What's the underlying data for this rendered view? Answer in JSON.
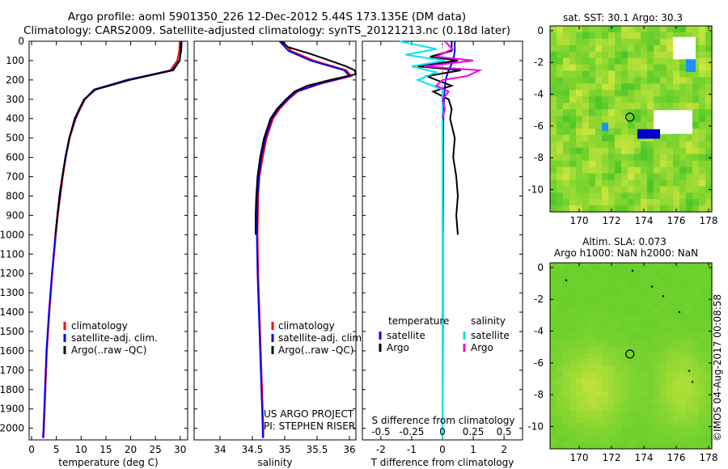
{
  "header": {
    "title_line1": "Argo profile: aoml 5901350_226 12-Dec-2012 5.44S 173.135E (DM data)",
    "title_line2": "Climatology: CARS2009. Satellite-adjusted climatology: synTS_20121213.nc (0.18d later)"
  },
  "footer_stamp": "©IMOS 04-Aug-2017 00:08:58",
  "colors": {
    "climatology": "#ff0000",
    "satellite": "#0000ff",
    "argo": "#000000",
    "salinity_satellite": "#00e5ee",
    "salinity_argo": "#ee00ee",
    "map_base": "#4cd93a"
  },
  "chart_data": [
    {
      "type": "line",
      "xlabel": "temperature (deg C)",
      "ylabel": "",
      "xlim": [
        -0.5,
        31.5
      ],
      "ylim": [
        2060,
        0
      ],
      "xticks": [
        0,
        5,
        10,
        15,
        20,
        25,
        30
      ],
      "yticks": [
        0,
        100,
        200,
        300,
        400,
        500,
        600,
        700,
        800,
        900,
        1000,
        1100,
        1200,
        1300,
        1400,
        1500,
        1600,
        1700,
        1800,
        1900,
        2000
      ],
      "legend": [
        "climatology",
        "satellite-adj. clim.",
        "Argo(..raw -QC)"
      ],
      "legend_position": "bottom-left",
      "series": [
        {
          "name": "climatology",
          "depth": [
            0,
            50,
            100,
            150,
            200,
            250,
            300,
            350,
            400,
            500,
            600,
            700,
            800,
            900,
            1000,
            1200,
            1400,
            1600,
            1800,
            2000,
            2050
          ],
          "values": [
            29.9,
            29.8,
            29.4,
            28.0,
            19.6,
            12.8,
            10.8,
            9.8,
            8.9,
            7.7,
            6.9,
            6.3,
            5.8,
            5.3,
            4.9,
            4.2,
            3.6,
            3.1,
            2.8,
            2.5,
            2.4
          ]
        },
        {
          "name": "satellite-adj. clim.",
          "depth": [
            0,
            50,
            100,
            150,
            200,
            250,
            300,
            350,
            400,
            500,
            600,
            700,
            800,
            900,
            1000,
            1200,
            1400,
            1600,
            1800,
            2000,
            2050
          ],
          "values": [
            30.3,
            30.2,
            29.8,
            28.4,
            19.2,
            12.6,
            10.7,
            9.7,
            8.8,
            7.6,
            6.8,
            6.2,
            5.7,
            5.2,
            4.8,
            4.1,
            3.5,
            3.0,
            2.7,
            2.4,
            2.3
          ]
        },
        {
          "name": "Argo(..raw -QC)",
          "depth": [
            0,
            50,
            100,
            150,
            200,
            250,
            300,
            350,
            400,
            500,
            600,
            700,
            800,
            900,
            1000
          ],
          "values": [
            30.2,
            30.1,
            29.9,
            28.6,
            19.8,
            12.9,
            10.6,
            9.6,
            8.7,
            7.6,
            6.9,
            6.2,
            5.6,
            5.2,
            4.8
          ]
        }
      ]
    },
    {
      "type": "line",
      "xlabel": "salinity",
      "xlim": [
        33.6,
        36.1
      ],
      "ylim": [
        2060,
        0
      ],
      "xticks": [
        34,
        34.5,
        35,
        35.5,
        36
      ],
      "legend": [
        "climatology",
        "satellite-adj. clim.",
        "Argo(..raw -QC)"
      ],
      "legend_position": "bottom-right",
      "annotations": [
        "US ARGO PROJECT",
        "PI: STEPHEN RISER"
      ],
      "series": [
        {
          "name": "climatology",
          "depth": [
            0,
            50,
            100,
            150,
            180,
            220,
            260,
            300,
            350,
            400,
            500,
            600,
            700,
            800,
            1000,
            1200,
            1400,
            1600,
            1800,
            2000,
            2050
          ],
          "values": [
            34.96,
            35.1,
            35.45,
            35.95,
            36.03,
            35.55,
            35.2,
            35.06,
            34.92,
            34.82,
            34.72,
            34.66,
            34.61,
            34.59,
            34.58,
            34.59,
            34.61,
            34.63,
            34.65,
            34.67,
            34.67
          ]
        },
        {
          "name": "satellite-adj. clim.",
          "depth": [
            0,
            50,
            100,
            150,
            180,
            220,
            260,
            300,
            350,
            400,
            500,
            600,
            700,
            800,
            1000,
            1200,
            1400,
            1600,
            1800,
            2000,
            2050
          ],
          "values": [
            34.92,
            35.06,
            35.4,
            35.92,
            36.0,
            35.52,
            35.18,
            35.04,
            34.9,
            34.8,
            34.7,
            34.64,
            34.6,
            34.58,
            34.57,
            34.58,
            34.6,
            34.62,
            34.64,
            34.66,
            34.66
          ]
        },
        {
          "name": "Argo(..raw -QC)",
          "depth": [
            0,
            30,
            60,
            100,
            130,
            150,
            170,
            200,
            230,
            260,
            300,
            350,
            400,
            500,
            600,
            700,
            800,
            900,
            1000
          ],
          "values": [
            34.95,
            35.05,
            35.35,
            35.7,
            35.95,
            36.08,
            36.1,
            35.7,
            35.35,
            35.15,
            35.02,
            34.88,
            34.78,
            34.68,
            34.62,
            34.58,
            34.56,
            34.55,
            34.55
          ]
        }
      ]
    },
    {
      "type": "line",
      "xlabel": "T difference from climatology",
      "top_axis_label": "S difference from climatology",
      "xlim": [
        -2.6,
        2.6
      ],
      "ylim": [
        2060,
        0
      ],
      "xticks": [
        -2,
        -1,
        0,
        1,
        2
      ],
      "top_ticks": [
        -0.5,
        -0.25,
        0,
        0.25,
        0.5
      ],
      "top_tick_labels": [
        "-0.5",
        "-0.25",
        "0",
        "0.25",
        "0.5"
      ],
      "legend": [
        "temperature",
        "satellite",
        "Argo",
        "salinity",
        "satellite",
        "Argo"
      ],
      "series": [
        {
          "name": "satellite",
          "kind": "temperature",
          "depth": [
            0,
            50,
            100,
            150,
            200,
            300,
            400,
            600,
            800,
            1000,
            1500,
            2050
          ],
          "values": [
            0.4,
            0.4,
            0.35,
            0.2,
            0.1,
            0.05,
            0.03,
            0.02,
            0.02,
            0.01,
            0.01,
            0.0
          ]
        },
        {
          "name": "Argo",
          "kind": "temperature",
          "depth": [
            0,
            50,
            80,
            100,
            130,
            150,
            180,
            200,
            230,
            260,
            300,
            350,
            400,
            500,
            600,
            700,
            800,
            900,
            1000
          ],
          "values": [
            0.3,
            0.3,
            -0.4,
            0.5,
            -0.8,
            0.6,
            -0.5,
            -0.2,
            0.3,
            -0.3,
            0.2,
            0.3,
            0.25,
            0.4,
            0.35,
            0.45,
            0.5,
            0.45,
            0.5
          ]
        },
        {
          "name": "satellite",
          "kind": "salinity",
          "depth": [
            0,
            40,
            70,
            100,
            130,
            160,
            200,
            250,
            300,
            400,
            600,
            1000,
            1500,
            2050
          ],
          "values": [
            -0.35,
            -0.05,
            -0.3,
            0.02,
            -0.25,
            -0.05,
            -0.2,
            0.0,
            0.0,
            0.0,
            0.0,
            0.0,
            0.0,
            0.0
          ]
        },
        {
          "name": "Argo",
          "kind": "salinity",
          "depth": [
            0,
            40,
            80,
            100,
            130,
            150,
            180,
            200,
            230,
            260,
            300,
            350,
            400
          ],
          "values": [
            0.02,
            0.08,
            -0.05,
            0.25,
            -0.15,
            0.3,
            0.2,
            0.0,
            -0.05,
            0.05,
            0.0,
            0.02,
            0.0
          ]
        }
      ]
    },
    {
      "type": "heatmap",
      "title": "sat. SST: 30.1  Argo: 30.3",
      "xlim": [
        168.2,
        178.2
      ],
      "ylim": [
        -11.4,
        0.3
      ],
      "xticks": [
        170,
        172,
        174,
        176,
        178
      ],
      "yticks": [
        0,
        -2,
        -4,
        -6,
        -8,
        -10
      ],
      "argo_position": {
        "lon": 173.135,
        "lat": -5.44
      }
    },
    {
      "type": "heatmap",
      "title_line1": "Altim. SLA: 0.073",
      "title_line2": "Argo h1000: NaN h2000: NaN",
      "xlim": [
        168.2,
        178.2
      ],
      "ylim": [
        -11.4,
        0.3
      ],
      "xticks": [
        170,
        172,
        174,
        176,
        178
      ],
      "yticks": [
        0,
        -2,
        -4,
        -6,
        -8,
        -10
      ],
      "argo_position": {
        "lon": 173.135,
        "lat": -5.44
      }
    }
  ]
}
